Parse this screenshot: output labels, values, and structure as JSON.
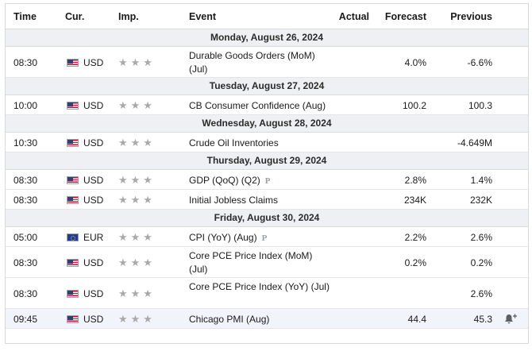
{
  "header": {
    "time": "Time",
    "currency": "Cur.",
    "importance": "Imp.",
    "event": "Event",
    "actual": "Actual",
    "forecast": "Forecast",
    "previous": "Previous"
  },
  "star_glyph": "★★★",
  "preliminary_marker": "P",
  "days": [
    {
      "label": "Monday, August 26, 2024",
      "events": [
        {
          "time": "08:30",
          "flag": "us-flag-icon",
          "currency": "USD",
          "event": "Durable Goods Orders (MoM) (Jul)",
          "actual": "",
          "forecast": "4.0%",
          "previous": "-6.6%",
          "preliminary": false
        }
      ]
    },
    {
      "label": "Tuesday, August 27, 2024",
      "events": [
        {
          "time": "10:00",
          "flag": "us-flag-icon",
          "currency": "USD",
          "event": "CB Consumer Confidence (Aug)",
          "actual": "",
          "forecast": "100.2",
          "previous": "100.3",
          "preliminary": false
        }
      ]
    },
    {
      "label": "Wednesday, August 28, 2024",
      "events": [
        {
          "time": "10:30",
          "flag": "us-flag-icon",
          "currency": "USD",
          "event": "Crude Oil Inventories",
          "actual": "",
          "forecast": "",
          "previous": "-4.649M",
          "preliminary": false
        }
      ]
    },
    {
      "label": "Thursday, August 29, 2024",
      "events": [
        {
          "time": "08:30",
          "flag": "us-flag-icon",
          "currency": "USD",
          "event": "GDP (QoQ) (Q2)",
          "actual": "",
          "forecast": "2.8%",
          "previous": "1.4%",
          "preliminary": true
        },
        {
          "time": "08:30",
          "flag": "us-flag-icon",
          "currency": "USD",
          "event": "Initial Jobless Claims",
          "actual": "",
          "forecast": "234K",
          "previous": "232K",
          "preliminary": false
        }
      ]
    },
    {
      "label": "Friday, August 30, 2024",
      "events": [
        {
          "time": "05:00",
          "flag": "eu-flag-icon",
          "currency": "EUR",
          "event": "CPI (YoY) (Aug)",
          "actual": "",
          "forecast": "2.2%",
          "previous": "2.6%",
          "preliminary": true
        },
        {
          "time": "08:30",
          "flag": "us-flag-icon",
          "currency": "USD",
          "event": "Core PCE Price Index (MoM) (Jul)",
          "actual": "",
          "forecast": "0.2%",
          "previous": "0.2%",
          "preliminary": false
        },
        {
          "time": "08:30",
          "flag": "us-flag-icon",
          "currency": "USD",
          "event": "Core PCE Price Index (YoY) (Jul)",
          "actual": "",
          "forecast": "",
          "previous": "2.6%",
          "preliminary": false
        },
        {
          "time": "09:45",
          "flag": "us-flag-icon",
          "currency": "USD",
          "event": "Chicago PMI (Aug)",
          "actual": "",
          "forecast": "44.4",
          "previous": "45.3",
          "preliminary": false,
          "highlighted": true,
          "alert_icon": "add-alert-bell-icon"
        }
      ]
    }
  ],
  "colors": {
    "day_header_bg": "#eef0f3",
    "border": "#d7d9dc",
    "highlight_row_bg": "#f1f5fb",
    "star": "#a9a9a9"
  }
}
